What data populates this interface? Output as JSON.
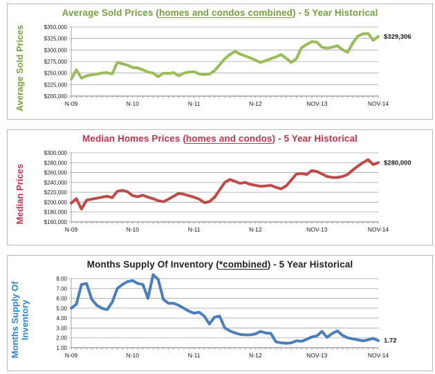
{
  "chart_data": [
    {
      "type": "line",
      "title_prefix": "Average Sold Prices (",
      "title_underlined": "homes and condos combined",
      "title_suffix": ") - 5 Year Historical",
      "title": "Average Sold Prices (homes and condos combined) - 5 Year Historical",
      "ylabel": "Average Sold Prices",
      "title_color": "#76a03e",
      "ylabel_color": "#76a03e",
      "line_color": "#9bbb59",
      "end_label": "$329,306",
      "y_tick_labels": [
        "$350,000",
        "$325,000",
        "$300,000",
        "$275,000",
        "$250,000",
        "$225,000",
        "$200,000"
      ],
      "ylim": [
        200000,
        350000
      ],
      "x_tick_labels": [
        "N-09",
        "N-10",
        "N-11",
        "N-12",
        "NOV-13",
        "NOV-14"
      ],
      "x_tick_positions": [
        0,
        12,
        24,
        36,
        48,
        60
      ],
      "grid": true,
      "legend": "none",
      "values": [
        237000,
        257000,
        239000,
        244000,
        246000,
        248000,
        250000,
        251000,
        248000,
        273000,
        270000,
        267000,
        262000,
        261000,
        257000,
        252000,
        250000,
        242000,
        250000,
        249000,
        251000,
        244000,
        250000,
        252000,
        253000,
        248000,
        247000,
        248000,
        255000,
        268000,
        281000,
        290000,
        297000,
        291000,
        287000,
        283000,
        278000,
        273000,
        277000,
        281000,
        285000,
        290000,
        282000,
        273000,
        281000,
        305000,
        312000,
        318000,
        317000,
        306000,
        304000,
        306000,
        309000,
        301000,
        295000,
        315000,
        330000,
        335000,
        336000,
        321000,
        329306
      ]
    },
    {
      "type": "line",
      "title_prefix": "Median Homes Prices (",
      "title_underlined": "homes and condos",
      "title_suffix": ") - 5 Year Historical",
      "title": "Median Homes Prices (homes and condos) - 5 Year Historical",
      "ylabel": "Median Prices",
      "title_color": "#c2344e",
      "ylabel_color": "#c2344e",
      "line_color": "#be4b48",
      "end_label": "$280,000",
      "y_tick_labels": [
        "$300,000",
        "$280,000",
        "$260,000",
        "$240,000",
        "$220,000",
        "$200,000",
        "$180,000",
        "$160,000"
      ],
      "ylim": [
        160000,
        300000
      ],
      "x_tick_labels": [
        "N-09",
        "N-10",
        "N-11",
        "N-12",
        "NOV-13",
        "NOV-14"
      ],
      "x_tick_positions": [
        0,
        12,
        24,
        36,
        48,
        60
      ],
      "grid": true,
      "legend": "none",
      "values": [
        198000,
        207000,
        186000,
        204000,
        206000,
        208000,
        210000,
        212000,
        209000,
        222000,
        224000,
        221000,
        213000,
        211000,
        214000,
        210000,
        207000,
        203000,
        201000,
        206000,
        212000,
        218000,
        216000,
        213000,
        210000,
        206000,
        199000,
        201000,
        210000,
        225000,
        240000,
        246000,
        242000,
        238000,
        240000,
        236000,
        234000,
        232000,
        233000,
        234000,
        230000,
        227000,
        233000,
        245000,
        257000,
        258000,
        256000,
        264000,
        262000,
        257000,
        252000,
        250000,
        250000,
        252000,
        256000,
        265000,
        273000,
        280000,
        286000,
        276000,
        280000
      ]
    },
    {
      "type": "line",
      "title_prefix": "Months Supply Of Inventory (",
      "title_underlined": "*combined",
      "title_suffix": ") - 5 Year Historical",
      "title": "Months Supply Of Inventory (*combined) - 5 Year Historical",
      "ylabel": "Months Supply Of\nInventory",
      "title_color": "#1f1f1f",
      "ylabel_color": "#2e86c9",
      "line_color": "#4a7ebb",
      "end_label": "1.72",
      "y_tick_labels": [
        "8.00",
        "7.00",
        "6.00",
        "5.00",
        "4.00",
        "3.00",
        "2.00",
        "1.00"
      ],
      "ylim": [
        1,
        8
      ],
      "x_tick_labels": [
        "N-09",
        "N-10",
        "N-11",
        "N-12",
        "NOV-13",
        "NOV-14"
      ],
      "x_tick_positions": [
        0,
        12,
        24,
        36,
        48,
        60
      ],
      "grid": true,
      "legend": "none",
      "values": [
        5.0,
        5.4,
        7.4,
        7.5,
        5.9,
        5.3,
        5.0,
        4.85,
        5.6,
        7.0,
        7.4,
        7.7,
        7.8,
        7.5,
        7.4,
        6.0,
        8.4,
        7.9,
        5.9,
        5.5,
        5.5,
        5.3,
        5.0,
        4.7,
        4.5,
        4.6,
        4.2,
        3.4,
        4.1,
        4.2,
        3.0,
        2.7,
        2.5,
        2.35,
        2.3,
        2.3,
        2.4,
        2.65,
        2.5,
        2.45,
        1.6,
        1.5,
        1.45,
        1.5,
        1.7,
        1.65,
        1.85,
        2.1,
        2.2,
        2.65,
        2.05,
        2.45,
        2.7,
        2.25,
        2.0,
        1.9,
        1.8,
        1.7,
        1.8,
        1.95,
        1.72
      ]
    }
  ],
  "style": {
    "gridline_color": "#a3a3a3",
    "axis_color": "#8c8c8c",
    "tick_label_color": "#1a1a1a",
    "end_label_color": "#1a1a1a",
    "panel_border_color": "#b9b9b9"
  }
}
